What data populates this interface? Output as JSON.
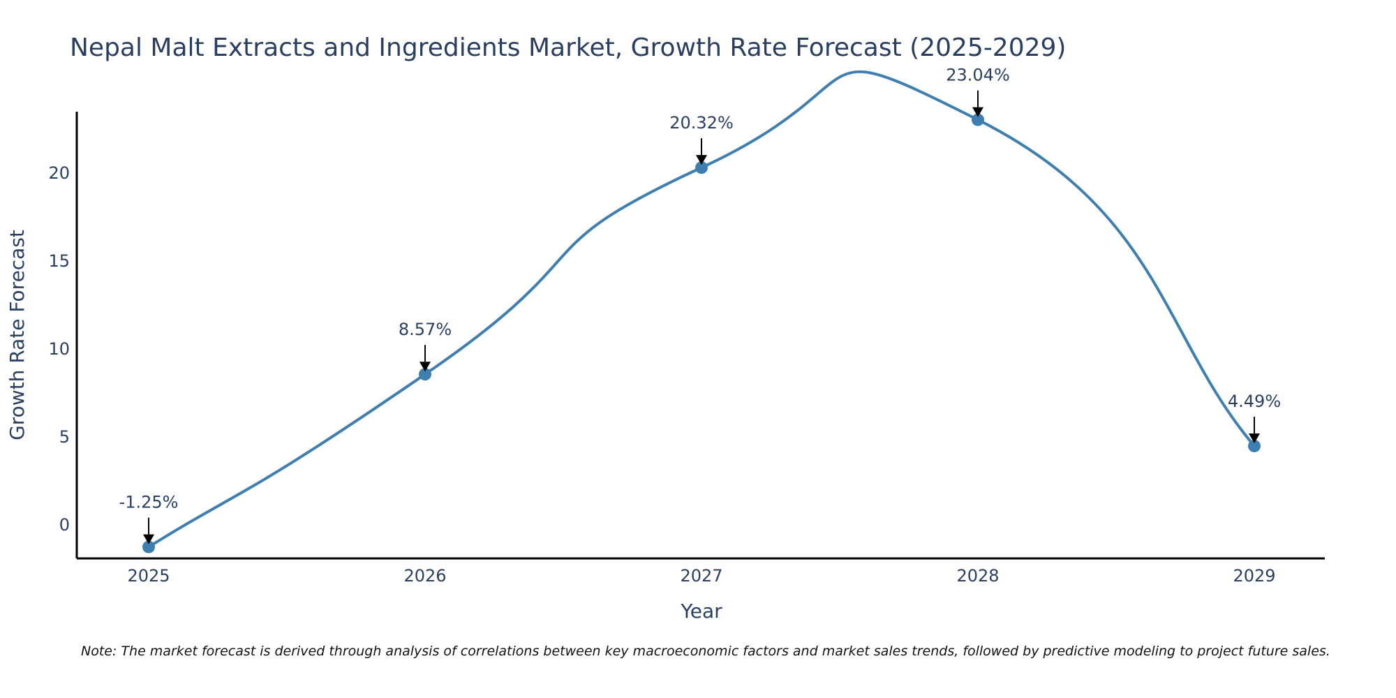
{
  "chart_data": {
    "type": "line",
    "title": "Nepal Malt Extracts and Ingredients Market, Growth Rate Forecast (2025-2029)",
    "xlabel": "Year",
    "ylabel": "Growth Rate Forecast",
    "categories": [
      "2025",
      "2026",
      "2027",
      "2028",
      "2029"
    ],
    "series": [
      {
        "name": "Growth Rate Forecast",
        "values": [
          -1.25,
          8.57,
          20.32,
          23.04,
          4.49
        ],
        "labels": [
          "-1.25%",
          "8.57%",
          "20.32%",
          "23.04%",
          "4.49%"
        ],
        "color": "#3f7fb0"
      }
    ],
    "y_ticks": [
      0,
      5,
      10,
      15,
      20
    ],
    "y_tick_labels": [
      "0",
      "5",
      "10",
      "15",
      "20"
    ],
    "ylim": [
      -1.9,
      23.5
    ],
    "line_shape": "spline",
    "grid": false,
    "legend": "none",
    "note": "Note: The market forecast is derived through analysis of correlations between key macroeconomic factors and market sales trends, followed by predictive modeling to project future sales."
  }
}
